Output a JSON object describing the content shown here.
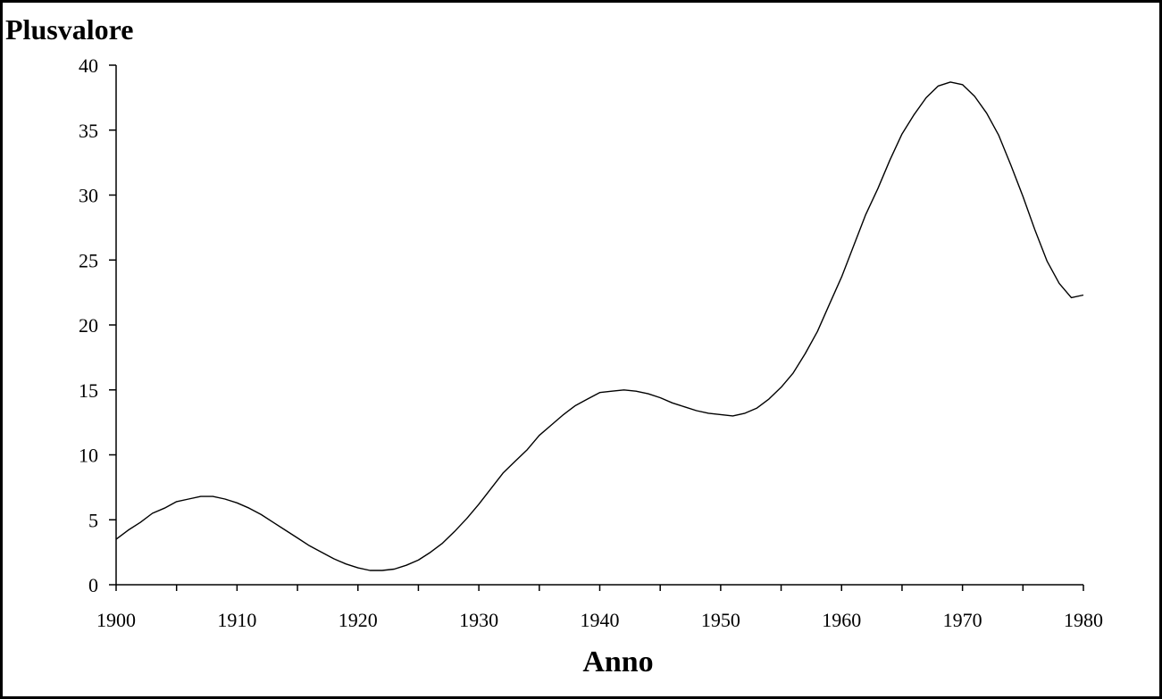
{
  "chart_data": {
    "type": "line",
    "title": "",
    "xlabel": "Anno",
    "ylabel": "Plusvalore",
    "xlim": [
      1900,
      1980
    ],
    "ylim": [
      0,
      40
    ],
    "x_ticks": [
      1900,
      1910,
      1920,
      1930,
      1940,
      1950,
      1960,
      1970,
      1980
    ],
    "x_minor_step": 5,
    "y_ticks": [
      0,
      5,
      10,
      15,
      20,
      25,
      30,
      35,
      40
    ],
    "grid": false,
    "legend": "none",
    "line_color": "#000000",
    "series": [
      {
        "x": [
          1900,
          1901,
          1902,
          1903,
          1904,
          1905,
          1906,
          1907,
          1908,
          1909,
          1910,
          1911,
          1912,
          1913,
          1914,
          1915,
          1916,
          1917,
          1918,
          1919,
          1920,
          1921,
          1922,
          1923,
          1924,
          1925,
          1926,
          1927,
          1928,
          1929,
          1930,
          1931,
          1932,
          1933,
          1934,
          1935,
          1936,
          1937,
          1938,
          1939,
          1940,
          1941,
          1942,
          1943,
          1944,
          1945,
          1946,
          1947,
          1948,
          1949,
          1950,
          1951,
          1952,
          1953,
          1954,
          1955,
          1956,
          1957,
          1958,
          1959,
          1960,
          1961,
          1962,
          1963,
          1964,
          1965,
          1966,
          1967,
          1968,
          1969,
          1970,
          1971,
          1972,
          1973,
          1974,
          1975,
          1976,
          1977,
          1978,
          1979,
          1980
        ],
        "values": [
          3.5,
          4.2,
          4.8,
          5.5,
          5.9,
          6.4,
          6.6,
          6.8,
          6.8,
          6.6,
          6.3,
          5.9,
          5.4,
          4.8,
          4.2,
          3.6,
          3.0,
          2.5,
          2.0,
          1.6,
          1.3,
          1.1,
          1.1,
          1.2,
          1.5,
          1.9,
          2.5,
          3.2,
          4.1,
          5.1,
          6.2,
          7.4,
          8.6,
          9.5,
          10.4,
          11.5,
          12.3,
          13.1,
          13.8,
          14.3,
          14.8,
          14.9,
          15.0,
          14.9,
          14.7,
          14.4,
          14.0,
          13.7,
          13.4,
          13.2,
          13.1,
          13.0,
          13.2,
          13.6,
          14.3,
          15.2,
          16.3,
          17.8,
          19.5,
          21.6,
          23.7,
          26.1,
          28.5,
          30.5,
          32.7,
          34.7,
          36.2,
          37.5,
          38.4,
          38.7,
          38.5,
          37.6,
          36.3,
          34.6,
          32.3,
          29.9,
          27.3,
          24.9,
          23.2,
          22.1,
          22.3
        ]
      }
    ]
  }
}
